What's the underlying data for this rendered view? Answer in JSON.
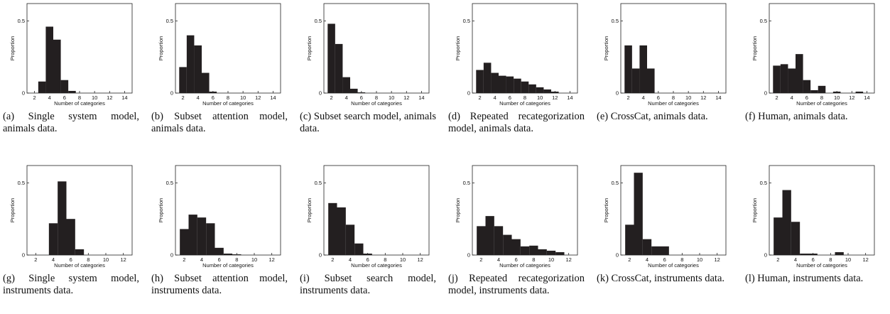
{
  "chart_data": [
    {
      "type": "histogram",
      "caption": "(a) Single system model, animals data.",
      "ylabel": "Proportion",
      "xlabel": "Number of categories",
      "color": "#231f20",
      "bins": [
        2.5,
        3.5,
        4.5,
        5.5,
        6.5,
        7.5
      ],
      "values": [
        0.08,
        0.46,
        0.37,
        0.09,
        0.015
      ],
      "xlim": [
        1,
        15
      ],
      "xticks": [
        2,
        4,
        6,
        8,
        10,
        12,
        14
      ],
      "ylim": [
        0,
        0.62
      ],
      "yticks": [
        0,
        0.5
      ]
    },
    {
      "type": "histogram",
      "caption": "(b) Subset attention model, animals data.",
      "ylabel": "Proportion",
      "xlabel": "Number of categories",
      "color": "#231f20",
      "bins": [
        1.5,
        2.5,
        3.5,
        4.5,
        5.5,
        6.5
      ],
      "values": [
        0.18,
        0.4,
        0.33,
        0.14,
        0.01
      ],
      "xlim": [
        1,
        15
      ],
      "xticks": [
        2,
        4,
        6,
        8,
        10,
        12,
        14
      ],
      "ylim": [
        0,
        0.62
      ],
      "yticks": [
        0,
        0.5
      ]
    },
    {
      "type": "histogram",
      "caption": "(c) Subset search model, animals data.",
      "ylabel": "Proportion",
      "xlabel": "Number of categories",
      "color": "#231f20",
      "bins": [
        1.5,
        2.5,
        3.5,
        4.5,
        5.5,
        6.5
      ],
      "values": [
        0.48,
        0.34,
        0.11,
        0.03,
        0.005
      ],
      "xlim": [
        1,
        15
      ],
      "xticks": [
        2,
        4,
        6,
        8,
        10,
        12,
        14
      ],
      "ylim": [
        0,
        0.62
      ],
      "yticks": [
        0,
        0.5
      ]
    },
    {
      "type": "histogram",
      "caption": "(d) Repeated recategorization model, animals data.",
      "ylabel": "Proportion",
      "xlabel": "Number of categories",
      "color": "#231f20",
      "bins": [
        1.5,
        2.5,
        3.5,
        4.5,
        5.5,
        6.5,
        7.5,
        8.5,
        9.5,
        10.5,
        11.5,
        12.5
      ],
      "values": [
        0.16,
        0.21,
        0.14,
        0.12,
        0.115,
        0.1,
        0.08,
        0.06,
        0.04,
        0.025,
        0.01
      ],
      "xlim": [
        1,
        15
      ],
      "xticks": [
        2,
        4,
        6,
        8,
        10,
        12,
        14
      ],
      "ylim": [
        0,
        0.62
      ],
      "yticks": [
        0,
        0.5
      ]
    },
    {
      "type": "histogram",
      "caption": "(e) CrossCat, animals data.",
      "ylabel": "Proportion",
      "xlabel": "Number of categories",
      "color": "#231f20",
      "bins": [
        1.5,
        2.5,
        3.5,
        4.5,
        5.5
      ],
      "values": [
        0.33,
        0.17,
        0.33,
        0.17
      ],
      "xlim": [
        1,
        15
      ],
      "xticks": [
        2,
        4,
        6,
        8,
        10,
        12,
        14
      ],
      "ylim": [
        0,
        0.62
      ],
      "yticks": [
        0,
        0.5
      ]
    },
    {
      "type": "histogram",
      "caption": "(f) Human, animals data.",
      "ylabel": "Proportion",
      "xlabel": "Number of categories",
      "color": "#231f20",
      "bins": [
        1.5,
        2.5,
        3.5,
        4.5,
        5.5,
        6.5,
        7.5,
        8.5,
        9.5,
        10.5,
        11.5,
        12.5,
        13.5
      ],
      "values": [
        0.19,
        0.2,
        0.17,
        0.27,
        0.09,
        0.02,
        0.05,
        0,
        0.01,
        0,
        0,
        0.01
      ],
      "xlim": [
        1,
        15
      ],
      "xticks": [
        2,
        4,
        6,
        8,
        10,
        12,
        14
      ],
      "ylim": [
        0,
        0.62
      ],
      "yticks": [
        0,
        0.5
      ]
    },
    {
      "type": "histogram",
      "caption": "(g) Single system model, instruments data.",
      "ylabel": "Proportion",
      "xlabel": "Number of categories",
      "color": "#231f20",
      "bins": [
        3.5,
        4.5,
        5.5,
        6.5,
        7.5
      ],
      "values": [
        0.22,
        0.51,
        0.25,
        0.04
      ],
      "xlim": [
        1,
        13
      ],
      "xticks": [
        2,
        4,
        6,
        8,
        10,
        12
      ],
      "ylim": [
        0,
        0.62
      ],
      "yticks": [
        0,
        0.5
      ]
    },
    {
      "type": "histogram",
      "caption": "(h) Subset attention model, instruments data.",
      "ylabel": "Proportion",
      "xlabel": "Number of categories",
      "color": "#231f20",
      "bins": [
        1.5,
        2.5,
        3.5,
        4.5,
        5.5,
        6.5,
        7.5,
        8.5
      ],
      "values": [
        0.18,
        0.28,
        0.26,
        0.22,
        0.05,
        0.01,
        0.005
      ],
      "xlim": [
        1,
        13
      ],
      "xticks": [
        2,
        4,
        6,
        8,
        10,
        12
      ],
      "ylim": [
        0,
        0.62
      ],
      "yticks": [
        0,
        0.5
      ]
    },
    {
      "type": "histogram",
      "caption": "(i) Subset search model, instruments data.",
      "ylabel": "Proportion",
      "xlabel": "Number of categories",
      "color": "#231f20",
      "bins": [
        1.5,
        2.5,
        3.5,
        4.5,
        5.5,
        6.5
      ],
      "values": [
        0.36,
        0.33,
        0.21,
        0.08,
        0.01
      ],
      "xlim": [
        1,
        13
      ],
      "xticks": [
        2,
        4,
        6,
        8,
        10,
        12
      ],
      "ylim": [
        0,
        0.62
      ],
      "yticks": [
        0,
        0.5
      ]
    },
    {
      "type": "histogram",
      "caption": "(j) Repeated recategorization model, instruments data.",
      "ylabel": "Proportion",
      "xlabel": "Number of categories",
      "color": "#231f20",
      "bins": [
        1.5,
        2.5,
        3.5,
        4.5,
        5.5,
        6.5,
        7.5,
        8.5,
        9.5,
        10.5,
        11.5
      ],
      "values": [
        0.2,
        0.27,
        0.2,
        0.14,
        0.11,
        0.06,
        0.065,
        0.04,
        0.03,
        0.02
      ],
      "xlim": [
        1,
        13
      ],
      "xticks": [
        2,
        4,
        6,
        8,
        10,
        12
      ],
      "ylim": [
        0,
        0.62
      ],
      "yticks": [
        0,
        0.5
      ]
    },
    {
      "type": "histogram",
      "caption": "(k) CrossCat, instruments data.",
      "ylabel": "Proportion",
      "xlabel": "Number of categories",
      "color": "#231f20",
      "bins": [
        1.5,
        2.5,
        3.5,
        4.5,
        5.5,
        6.5
      ],
      "values": [
        0.21,
        0.57,
        0.11,
        0.06,
        0.06
      ],
      "xlim": [
        1,
        13
      ],
      "xticks": [
        2,
        4,
        6,
        8,
        10,
        12
      ],
      "ylim": [
        0,
        0.62
      ],
      "yticks": [
        0,
        0.5
      ]
    },
    {
      "type": "histogram",
      "caption": "(l) Human, instruments data.",
      "ylabel": "Proportion",
      "xlabel": "Number of categories",
      "color": "#231f20",
      "bins": [
        1.5,
        2.5,
        3.5,
        4.5,
        5.5,
        6.5,
        7.5,
        8.5,
        9.5
      ],
      "values": [
        0.26,
        0.45,
        0.23,
        0.01,
        0.01,
        0,
        0,
        0.02
      ],
      "xlim": [
        1,
        13
      ],
      "xticks": [
        2,
        4,
        6,
        8,
        10,
        12
      ],
      "ylim": [
        0,
        0.62
      ],
      "yticks": [
        0,
        0.5
      ]
    }
  ]
}
